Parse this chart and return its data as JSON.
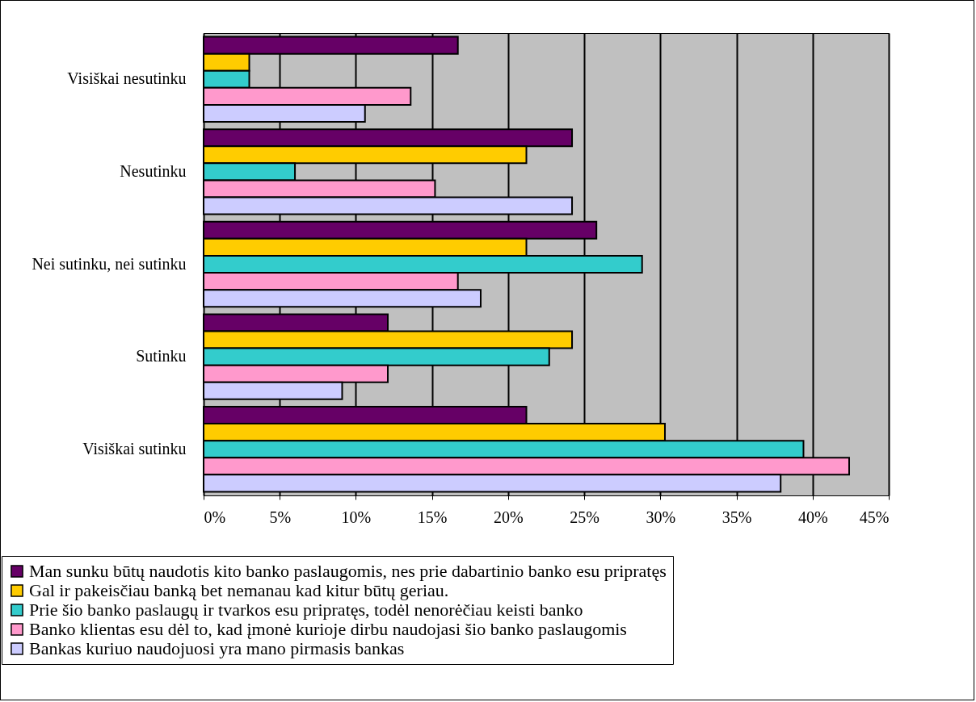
{
  "chart_data": {
    "type": "bar",
    "orientation": "horizontal",
    "categories": [
      "Visiškai nesutinku",
      "Nesutinku",
      "Nei sutinku, nei sutinku",
      "Sutinku",
      "Visiškai sutinku"
    ],
    "series": [
      {
        "name": "Man sunku būtų naudotis kito banko paslaugomis, nes prie dabartinio banko esu pripratęs",
        "color": "#660066",
        "values": [
          16.7,
          24.2,
          25.8,
          12.1,
          21.2
        ]
      },
      {
        "name": "Gal ir pakeisčiau banką bet nemanau kad kitur būtų geriau.",
        "color": "#ffcc00",
        "values": [
          3.0,
          21.2,
          21.2,
          24.2,
          30.3
        ]
      },
      {
        "name": "Prie šio banko paslaugų ir tvarkos esu pripratęs, todėl nenorėčiau keisti banko",
        "color": "#33cccc",
        "values": [
          3.0,
          6.0,
          28.8,
          22.7,
          39.4
        ]
      },
      {
        "name": "Banko klientas esu dėl to, kad įmonė kurioje dirbu naudojasi šio banko paslaugomis",
        "color": "#ff99cc",
        "values": [
          13.6,
          15.2,
          16.7,
          12.1,
          42.4
        ]
      },
      {
        "name": "Bankas kuriuo naudojuosi yra mano pirmasis bankas",
        "color": "#ccccff",
        "values": [
          10.6,
          24.2,
          18.2,
          9.1,
          37.9
        ]
      }
    ],
    "xlim": [
      0,
      45
    ],
    "xticks": [
      {
        "value": 0,
        "label": "0%"
      },
      {
        "value": 5,
        "label": "5%"
      },
      {
        "value": 10,
        "label": "10%"
      },
      {
        "value": 15,
        "label": "15%"
      },
      {
        "value": 20,
        "label": "20%"
      },
      {
        "value": 25,
        "label": "25%"
      },
      {
        "value": 30,
        "label": "30%"
      },
      {
        "value": 35,
        "label": "35%"
      },
      {
        "value": 40,
        "label": "40%"
      },
      {
        "value": 45,
        "label": "45%"
      }
    ],
    "grid": "x",
    "legend": "bottom"
  }
}
